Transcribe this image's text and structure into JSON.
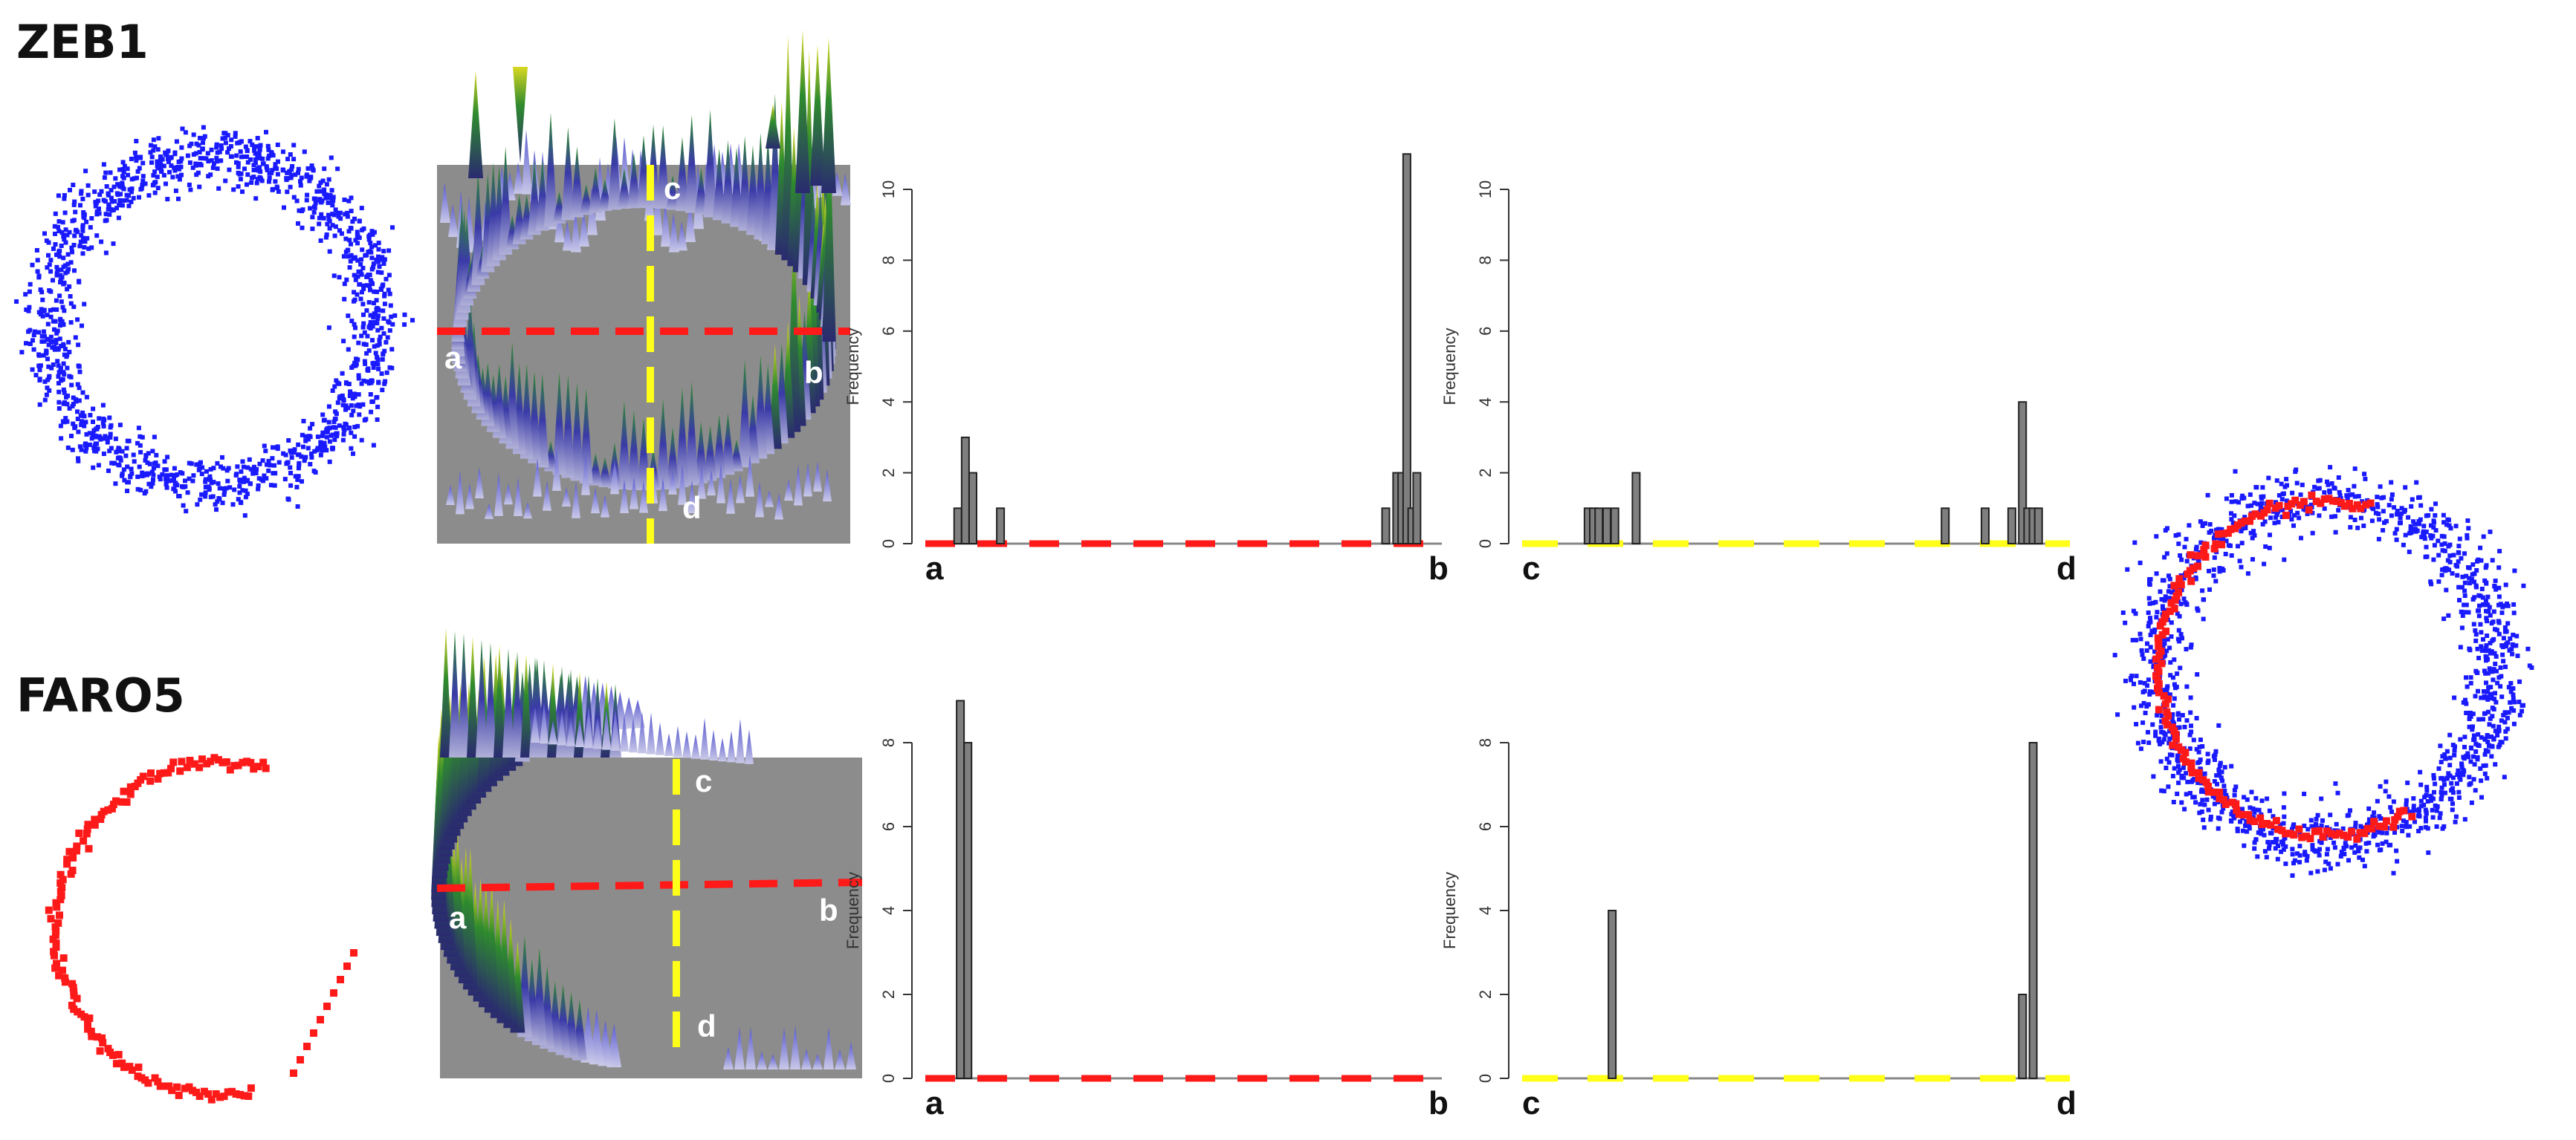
{
  "labels": {
    "zeb1": "ZEB1",
    "faro5": "FARO5"
  },
  "line_ends": {
    "a": "a",
    "b": "b",
    "c": "c",
    "d": "d"
  },
  "colors": {
    "blue_points": "#1a1aff",
    "red_points": "#ff1a1a",
    "red_line": "#ff1a1a",
    "yellow_line": "#ffff1a",
    "bar_fill": "#7f7f7f",
    "surface_bg": "#8c8c8c"
  },
  "panels": {
    "ring": {
      "zeb1": {
        "shape": "ring of points"
      },
      "faro5": {
        "shape": "arc of points (left and bottom of ring)"
      }
    },
    "surface_3d": {
      "zeb1": {
        "mark_labels": [
          "c",
          "a",
          "b",
          "d"
        ]
      },
      "faro5": {
        "mark_labels": [
          "c",
          "a",
          "b",
          "d"
        ]
      }
    },
    "overlay": {
      "shape": "blue ring with red arc overlay"
    }
  },
  "chart_data": [
    {
      "id": "zeb1_ab",
      "type": "bar",
      "ylabel": "Frequency",
      "ylim": [
        0,
        10
      ],
      "yticks": [
        0,
        2,
        4,
        6,
        8,
        10
      ],
      "x_start_label": "a",
      "x_end_label": "b",
      "line_color": "red",
      "bars": [
        {
          "x": 0.05,
          "y": 1
        },
        {
          "x": 0.065,
          "y": 3
        },
        {
          "x": 0.08,
          "y": 2
        },
        {
          "x": 0.135,
          "y": 1
        },
        {
          "x": 0.903,
          "y": 1
        },
        {
          "x": 0.925,
          "y": 2
        },
        {
          "x": 0.935,
          "y": 2
        },
        {
          "x": 0.945,
          "y": 11
        },
        {
          "x": 0.955,
          "y": 1
        },
        {
          "x": 0.965,
          "y": 2
        }
      ]
    },
    {
      "id": "zeb1_cd",
      "type": "bar",
      "ylabel": "Frequency",
      "ylim": [
        0,
        10
      ],
      "yticks": [
        0,
        2,
        4,
        6,
        8,
        10
      ],
      "x_start_label": "c",
      "x_end_label": "d",
      "line_color": "yellow",
      "bars": [
        {
          "x": 0.11,
          "y": 1
        },
        {
          "x": 0.12,
          "y": 1
        },
        {
          "x": 0.13,
          "y": 1
        },
        {
          "x": 0.145,
          "y": 1
        },
        {
          "x": 0.16,
          "y": 1
        },
        {
          "x": 0.2,
          "y": 2
        },
        {
          "x": 0.78,
          "y": 1
        },
        {
          "x": 0.855,
          "y": 1
        },
        {
          "x": 0.905,
          "y": 1
        },
        {
          "x": 0.925,
          "y": 4
        },
        {
          "x": 0.935,
          "y": 1
        },
        {
          "x": 0.945,
          "y": 1
        },
        {
          "x": 0.955,
          "y": 1
        }
      ]
    },
    {
      "id": "faro5_ab",
      "type": "bar",
      "ylabel": "Frequency",
      "ylim": [
        0,
        8
      ],
      "yticks": [
        0,
        2,
        4,
        6,
        8
      ],
      "x_start_label": "a",
      "x_end_label": "b",
      "line_color": "red",
      "bars": [
        {
          "x": 0.055,
          "y": 9
        },
        {
          "x": 0.07,
          "y": 8
        }
      ]
    },
    {
      "id": "faro5_cd",
      "type": "bar",
      "ylabel": "Frequency",
      "ylim": [
        0,
        8
      ],
      "yticks": [
        0,
        2,
        4,
        6,
        8
      ],
      "x_start_label": "c",
      "x_end_label": "d",
      "line_color": "yellow",
      "bars": [
        {
          "x": 0.155,
          "y": 4
        },
        {
          "x": 0.925,
          "y": 2
        },
        {
          "x": 0.945,
          "y": 8
        }
      ]
    }
  ]
}
